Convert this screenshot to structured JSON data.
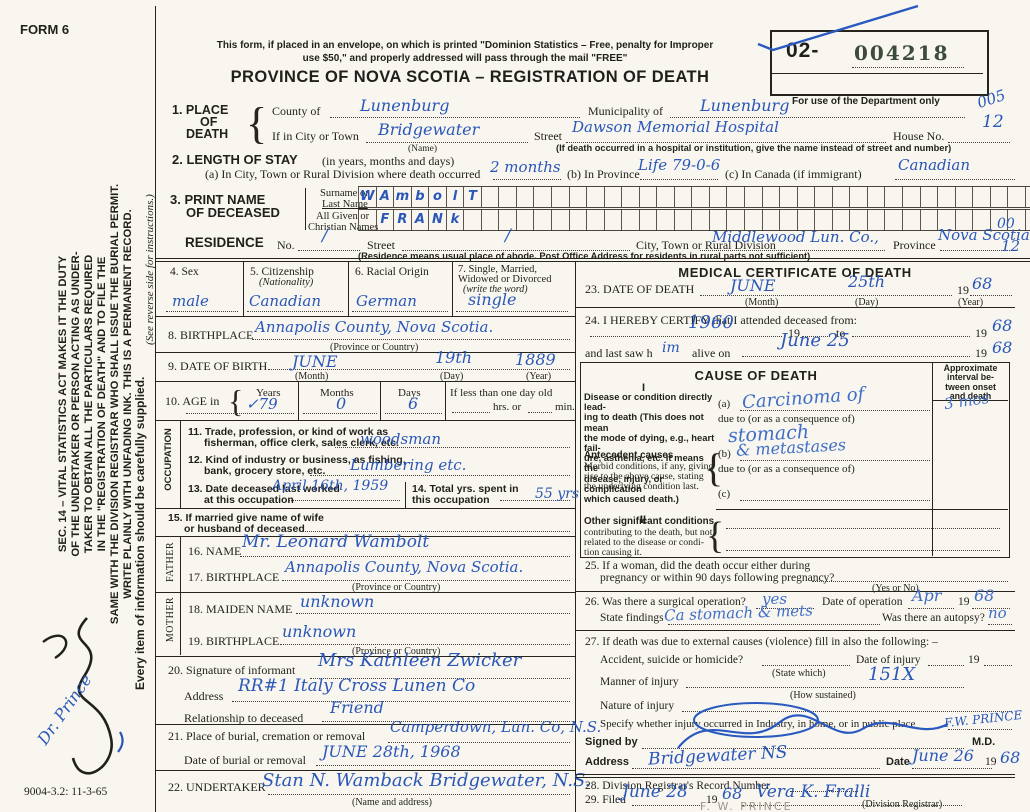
{
  "meta": {
    "form_no": "FORM 6",
    "print_code": "9004-3.2: 11-3-65"
  },
  "margin": {
    "statute": [
      "SEC. 14 – VITAL STATISTICS ACT MAKES IT THE DUTY",
      "OF THE UNDERTAKER OR PERSON ACTING AS UNDER-",
      "TAKER TO OBTAIN ALL THE PARTICULARS REQUIRED",
      "IN THE \"REGISTRATION OF DEATH\" AND TO FILE THE",
      "SAME WITH THE DIVISION REGISTRAR WHO SHALL ISSUE THE BURIAL PERMIT.",
      "WRITE PLAINLY WITH UNFADING INK. THIS IS A PERMANENT RECORD."
    ],
    "see_reverse": "(See reverse side for instructions.)",
    "every_item": "Every item of information should be carefully supplied.",
    "annotation": "Dr. Prince"
  },
  "header": {
    "notice1": "This form, if placed in an envelope, on which is printed \"Dominion Statistics – Free, penalty for Improper",
    "notice2": "use $50,\" and properly addressed will pass through the mail \"FREE\"",
    "title": "PROVINCE OF NOVA SCOTIA – REGISTRATION OF DEATH",
    "box_prefix": "02-",
    "box_number": "004218",
    "box_caption": "For use of the Department only",
    "code_005": "005",
    "code_12": "12"
  },
  "s1": {
    "no": "1.",
    "t1": "PLACE",
    "t2": "OF",
    "t3": "DEATH",
    "county_label": "County of",
    "county": "Lunenburg",
    "muni_label": "Municipality of",
    "muni": "Lunenburg",
    "town_label": "If in City or Town",
    "town": "Bridgewater",
    "town_sub": "(Name)",
    "street_label": "Street",
    "street": "Dawson Memorial Hospital",
    "street_sub": "(If death occurred in a hospital or institution, give the name instead of street and number)",
    "house_label": "House No.",
    "house": "12"
  },
  "s2": {
    "title": "2. LENGTH OF STAY",
    "title_suffix": "(in years, months and days)",
    "a_label": "(a) In City, Town or Rural Division where death occurred",
    "a": "2 months",
    "b_label": "(b) In Province",
    "b": "Life 79-0-6",
    "c_label": "(c) In Canada (if immigrant)",
    "c": "Canadian"
  },
  "s3": {
    "t1": "3. PRINT NAME",
    "t2": "OF DECEASED",
    "surname_label1": "Surname or",
    "surname_label2": "Last Name",
    "given_label1": "All Given or",
    "given_label2": "Christian Names",
    "surname_letters": [
      "W",
      "A",
      "m",
      "b",
      "o",
      "l",
      "T"
    ],
    "given_letters": [
      "",
      "F",
      "R",
      "A",
      "N",
      "k"
    ]
  },
  "res": {
    "label": "RESIDENCE",
    "no_label": "No.",
    "no": "/",
    "street_label": "Street",
    "street_slash": "/",
    "city_label": "City, Town or Rural Division",
    "city": "Middlewood Lun. Co.,",
    "prov_label": "Province",
    "prov": "Nova Scotia",
    "sub": "(Residence means usual place of abode. Post Office Address for residents in rural parts not sufficient)",
    "code1": "00",
    "code2": "12"
  },
  "s4": {
    "label": "4. Sex",
    "value": "male"
  },
  "s5": {
    "label": "5. Citizenship",
    "sub": "(Nationality)",
    "value": "Canadian"
  },
  "s6": {
    "label": "6. Racial Origin",
    "value": "German"
  },
  "s7": {
    "l1": "7. Single, Married,",
    "l2": "Widowed or Divorced",
    "l3": "(write the word)",
    "value": "single"
  },
  "s8": {
    "label": "8. BIRTHPLACE",
    "value": "Annapolis County, Nova Scotia.",
    "sub": "(Province or Country)"
  },
  "s9": {
    "label": "9. DATE OF BIRTH",
    "month": "JUNE",
    "day": "19th",
    "year": "1889",
    "m_sub": "(Month)",
    "d_sub": "(Day)",
    "y_sub": "(Year)"
  },
  "s10": {
    "label": "10. AGE in",
    "years_label": "Years",
    "months_label": "Months",
    "days_label": "Days",
    "less_label": "If less than one day old",
    "hrs_label": "hrs. or",
    "min_label": "min.",
    "years": "✓79",
    "months": "0",
    "days": "6"
  },
  "occ": {
    "sidebar": "OCCUPATION",
    "l11a": "11. Trade, profession, or kind of work as",
    "l11b": "fisherman, office clerk, sales clerk, etc.",
    "v11": "woodsman",
    "l12a": "12. Kind of industry or business, as fishing,",
    "l12b": "bank, grocery store, etc.",
    "v12": "Lumbering  etc.",
    "l13a": "13. Date deceased last worked",
    "l13b": "at this occupation",
    "v13": "April 16th, 1959",
    "l14a": "14. Total yrs. spent in",
    "l14b": "this occupation",
    "v14": "55 yrs"
  },
  "s15": {
    "l1": "15. If married give name of wife",
    "l2": "or husband of deceased"
  },
  "father": {
    "sidebar": "FATHER",
    "l16": "16. NAME",
    "v16": "Mr. Leonard Wambolt",
    "l17": "17. BIRTHPLACE",
    "v17": "Annapolis County, Nova Scotia.",
    "sub17": "(Province or Country)"
  },
  "mother": {
    "sidebar": "MOTHER",
    "l18": "18. MAIDEN NAME",
    "v18": "unknown",
    "l19": "19. BIRTHPLACE",
    "v19": "unknown",
    "sub19": "(Province or Country)"
  },
  "s20": {
    "l": "20. Signature of informant",
    "v": "Mrs Kathleen Zwicker",
    "addr_l": "Address",
    "addr": "RR#1 Italy Cross Lunen Co",
    "rel_l": "Relationship to deceased",
    "rel": "Friend"
  },
  "s21": {
    "l": "21. Place of burial, cremation or removal",
    "v": "Camperdown, Lun. Co, N.S.",
    "date_l": "Date of burial or removal",
    "date": "JUNE 28th, 1968"
  },
  "s22": {
    "l": "22. UNDERTAKER",
    "v": "Stan N. Wamback Bridgewater, N.S.",
    "sub": "(Name and address)"
  },
  "med": {
    "title": "MEDICAL CERTIFICATE OF DEATH",
    "s23": {
      "l": "23. DATE OF DEATH",
      "month": "JUNE",
      "day": "25th",
      "p19": "19",
      "year": "68",
      "m_sub": "(Month)",
      "d_sub": "(Day)",
      "y_sub": "(Year)"
    },
    "s24": {
      "l": "24. I HEREBY CERTIFY that I attended deceased from:",
      "from": "1960",
      "p19a": "19",
      "to_label": "to",
      "p19b": "19",
      "year_right": "68",
      "last_label": "and last saw h",
      "him": "im",
      "alive_label": "alive on",
      "last_date": "June 25",
      "p19c": "19",
      "last_year": "68"
    },
    "cause": {
      "title": "CAUSE OF DEATH",
      "interval": [
        "Approximate",
        "interval be-",
        "tween onset",
        "and death"
      ],
      "part1": "I",
      "desc": [
        "Disease or condition directly lead-",
        "ing to death (This does not mean",
        "the mode of dying, e.g., heart fail-",
        "ure, asthenia, etc. It means the",
        "disease, injury, or complication",
        "which caused death.)"
      ],
      "a_l": "(a)",
      "a_v": "Carcinoma of",
      "due_a": "due to (or as a consequence of)",
      "a_v2": "stomach",
      "interval_v": "3 mos",
      "ant": [
        "Antecedent causes",
        "Morbid conditions, if any, giving",
        "rise to the above cause, stating",
        "the underlying condition last."
      ],
      "b_l": "(b)",
      "b_v": "& metastases",
      "due_b": "due to (or as a consequence of)",
      "c_l": "(c)",
      "part2": "II",
      "other": [
        "Other significant conditions",
        "contributing to the death, but not",
        "related to the disease or condi-",
        "tion causing it."
      ]
    },
    "s25": {
      "l1": "25. If a woman, did the death occur either during",
      "l2": "pregnancy or within 90 days following pregnancy?",
      "sub": "(Yes or No)"
    },
    "s26": {
      "l": "26. Was there a surgical operation?",
      "v": "yes",
      "date_l": "Date of operation",
      "date_v": "Apr",
      "p19": "19",
      "year": "68",
      "find_l": "State findings",
      "find_v": "Ca stomach & mets",
      "aut_l": "Was there an autopsy?",
      "aut_v": "no"
    },
    "s27": {
      "l": "27. If death was due to external causes (violence) fill in also the following: –",
      "acc_l": "Accident, suicide or homicide?",
      "acc_sub": "(State which)",
      "inj_l": "Date of injury",
      "p19": "19",
      "man_l": "Manner of injury",
      "man_v": "151X",
      "man_sub": "(How sustained)",
      "nat_l": "Nature of injury",
      "spec_l": "Specify whether injury occurred in Industry, in home, or in public place",
      "spec_v": "F.W. PRINCE"
    },
    "signed": {
      "l": "Signed by",
      "md": "M.D.",
      "addr_l": "Address",
      "addr_v": "Bridgewater NS",
      "date_l": "Date",
      "date_v": "June 26",
      "p19": "19",
      "year": "68"
    },
    "s28": {
      "l": "28. Division Registrar's Record Number"
    },
    "s29": {
      "l": "29. Filed",
      "date": "June 28",
      "p19": "19",
      "year": "68",
      "registrar": "Vera K. Fralli",
      "sub": "(Division Registrar)",
      "pencil": "F. W. PRINCE"
    }
  }
}
